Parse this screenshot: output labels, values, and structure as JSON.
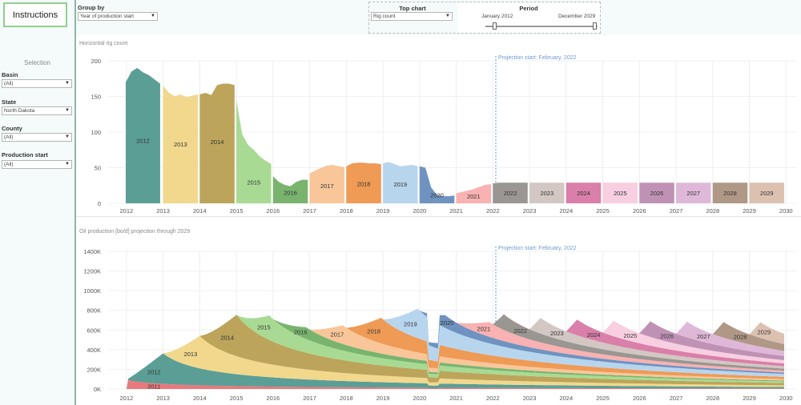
{
  "sidebar": {
    "instructions_label": "Instructions",
    "selection_title": "Selection",
    "filters": [
      {
        "label": "Basin",
        "value": "(All)"
      },
      {
        "label": "State",
        "value": "North Dakota"
      },
      {
        "label": "County",
        "value": "(All)"
      },
      {
        "label": "Production start",
        "value": "(All)"
      }
    ]
  },
  "toolbar": {
    "group_by_label": "Group by",
    "group_by_value": "Year of production start",
    "top_chart_label": "Top chart",
    "top_chart_value": "Rig count",
    "period_label": "Period",
    "period_start": "January 2012",
    "period_end": "December 2029",
    "period_range": [
      2012,
      2030
    ]
  },
  "colors": {
    "2011": "#e8797c",
    "2012": "#5b9e96",
    "2013": "#f1d88d",
    "2014": "#bca45a",
    "2015": "#a8da93",
    "2016": "#79b46f",
    "2017": "#f9c699",
    "2018": "#ef9a55",
    "2019": "#b8d5ee",
    "2020": "#6f93c0",
    "2021": "#f9b1b2",
    "2022": "#9a9692",
    "2023": "#d2c7c2",
    "2024": "#d97fa9",
    "2025": "#f8cfe1",
    "2026": "#bf92b5",
    "2027": "#dfb8d9",
    "2028": "#b09886",
    "2029": "#dcc1b1"
  },
  "chart_data": [
    {
      "type": "area",
      "title": "Horizontal rig count",
      "annotation": "Projection start: February, 2022",
      "projection_start": 2022.08,
      "x_ticks": [
        "2012",
        "2013",
        "2014",
        "2015",
        "2016",
        "2017",
        "2018",
        "2019",
        "2020",
        "2021",
        "2022",
        "2023",
        "2024",
        "2025",
        "2026",
        "2027",
        "2028",
        "2029",
        "2030"
      ],
      "y_ticks": [
        "200",
        "150",
        "100",
        "50",
        "0"
      ],
      "ylim": [
        0,
        200
      ],
      "xlim": [
        2011.5,
        2030.3
      ],
      "series": [
        {
          "name": "2012",
          "start": 2011.98,
          "end": 2012.92,
          "values": [
            170,
            185,
            190,
            184,
            180,
            174,
            168
          ]
        },
        {
          "name": "2013",
          "start": 2013.0,
          "end": 2013.95,
          "values": [
            165,
            155,
            150,
            153,
            149,
            151,
            153
          ]
        },
        {
          "name": "2014",
          "start": 2014.0,
          "end": 2014.95,
          "values": [
            153,
            155,
            152,
            166,
            168,
            168,
            166
          ]
        },
        {
          "name": "2015",
          "start": 2015.0,
          "end": 2015.95,
          "values": [
            145,
            97,
            82,
            75,
            66,
            60,
            55
          ]
        },
        {
          "name": "2016",
          "start": 2016.0,
          "end": 2016.95,
          "values": [
            38,
            30,
            26,
            24,
            30,
            33,
            33
          ]
        },
        {
          "name": "2017",
          "start": 2017.0,
          "end": 2017.95,
          "values": [
            42,
            46,
            50,
            53,
            54,
            52,
            51
          ]
        },
        {
          "name": "2018",
          "start": 2018.0,
          "end": 2018.95,
          "values": [
            52,
            56,
            57,
            57,
            56,
            56,
            55
          ]
        },
        {
          "name": "2019",
          "start": 2019.0,
          "end": 2019.95,
          "values": [
            56,
            58,
            55,
            52,
            53,
            54,
            52
          ]
        },
        {
          "name": "2020",
          "start": 2020.0,
          "end": 2020.95,
          "values": [
            52,
            50,
            22,
            12,
            10,
            10,
            11
          ]
        },
        {
          "name": "2021",
          "start": 2021.0,
          "end": 2021.95,
          "values": [
            14,
            16,
            18,
            20,
            23,
            26,
            27
          ]
        },
        {
          "name": "2022",
          "start": 2022.0,
          "end": 2022.95,
          "values": [
            28,
            29,
            29,
            29,
            29,
            29,
            29
          ]
        },
        {
          "name": "2023",
          "start": 2023.0,
          "end": 2023.95,
          "values": [
            29,
            29,
            29,
            29,
            29,
            29,
            29
          ]
        },
        {
          "name": "2024",
          "start": 2024.0,
          "end": 2024.95,
          "values": [
            29,
            29,
            29,
            29,
            29,
            29,
            29
          ]
        },
        {
          "name": "2025",
          "start": 2025.0,
          "end": 2025.95,
          "values": [
            29,
            29,
            29,
            29,
            29,
            29,
            29
          ]
        },
        {
          "name": "2026",
          "start": 2026.0,
          "end": 2026.95,
          "values": [
            29,
            29,
            29,
            29,
            29,
            29,
            29
          ]
        },
        {
          "name": "2027",
          "start": 2027.0,
          "end": 2027.95,
          "values": [
            29,
            29,
            29,
            29,
            29,
            29,
            29
          ]
        },
        {
          "name": "2028",
          "start": 2028.0,
          "end": 2028.95,
          "values": [
            29,
            29,
            29,
            29,
            29,
            29,
            29
          ]
        },
        {
          "name": "2029",
          "start": 2029.0,
          "end": 2029.95,
          "values": [
            29,
            29,
            29,
            29,
            29,
            29,
            29
          ]
        }
      ]
    },
    {
      "type": "area",
      "title": "Oil production [bo/d] projection through 2029",
      "annotation": "Projection start: February, 2022",
      "projection_start": 2022.08,
      "x_ticks": [
        "2012",
        "2013",
        "2014",
        "2015",
        "2016",
        "2017",
        "2018",
        "2019",
        "2020",
        "2021",
        "2022",
        "2023",
        "2024",
        "2025",
        "2026",
        "2027",
        "2028",
        "2029",
        "2030"
      ],
      "y_ticks": [
        "1400K",
        "1200K",
        "1000K",
        "800K",
        "600K",
        "400K",
        "200K",
        "0K"
      ],
      "ylim": [
        0,
        1400000
      ],
      "xlim": [
        2011.5,
        2030.3
      ],
      "stacked": true,
      "series": [
        {
          "name": "2011",
          "start": 2012.0,
          "peak": 90000,
          "ramp": 0.05,
          "decay": 0.2
        },
        {
          "name": "2012",
          "start": 2012.0,
          "peak": 310000,
          "ramp": 1.0,
          "decay": 0.3
        },
        {
          "name": "2013",
          "start": 2013.0,
          "peak": 330000,
          "ramp": 1.0,
          "decay": 0.3
        },
        {
          "name": "2014",
          "start": 2014.0,
          "peak": 420000,
          "ramp": 1.0,
          "decay": 0.3
        },
        {
          "name": "2015",
          "start": 2015.0,
          "peak": 250000,
          "ramp": 0.9,
          "decay": 0.3
        },
        {
          "name": "2016",
          "start": 2016.0,
          "peak": 120000,
          "ramp": 0.9,
          "decay": 0.3
        },
        {
          "name": "2017",
          "start": 2017.0,
          "peak": 190000,
          "ramp": 0.9,
          "decay": 0.3
        },
        {
          "name": "2018",
          "start": 2018.0,
          "peak": 260000,
          "ramp": 0.95,
          "decay": 0.3
        },
        {
          "name": "2019",
          "start": 2019.0,
          "peak": 300000,
          "ramp": 0.95,
          "decay": 0.3
        },
        {
          "name": "2020",
          "start": 2020.0,
          "peak": 130000,
          "ramp": 0.7,
          "decay": 0.3
        },
        {
          "name": "2021",
          "start": 2021.0,
          "peak": 150000,
          "ramp": 0.9,
          "decay": 0.3
        },
        {
          "name": "2022",
          "start": 2022.0,
          "peak": 160000,
          "ramp": 0.3,
          "decay": 0.32
        },
        {
          "name": "2023",
          "start": 2023.0,
          "peak": 160000,
          "ramp": 0.3,
          "decay": 0.32
        },
        {
          "name": "2024",
          "start": 2024.0,
          "peak": 160000,
          "ramp": 0.3,
          "decay": 0.32
        },
        {
          "name": "2025",
          "start": 2025.0,
          "peak": 160000,
          "ramp": 0.3,
          "decay": 0.32
        },
        {
          "name": "2026",
          "start": 2026.0,
          "peak": 160000,
          "ramp": 0.3,
          "decay": 0.32
        },
        {
          "name": "2027",
          "start": 2027.0,
          "peak": 160000,
          "ramp": 0.3,
          "decay": 0.32
        },
        {
          "name": "2028",
          "start": 2028.0,
          "peak": 160000,
          "ramp": 0.3,
          "decay": 0.32
        },
        {
          "name": "2029",
          "start": 2029.0,
          "peak": 160000,
          "ramp": 0.3,
          "decay": 0.32
        }
      ]
    }
  ]
}
